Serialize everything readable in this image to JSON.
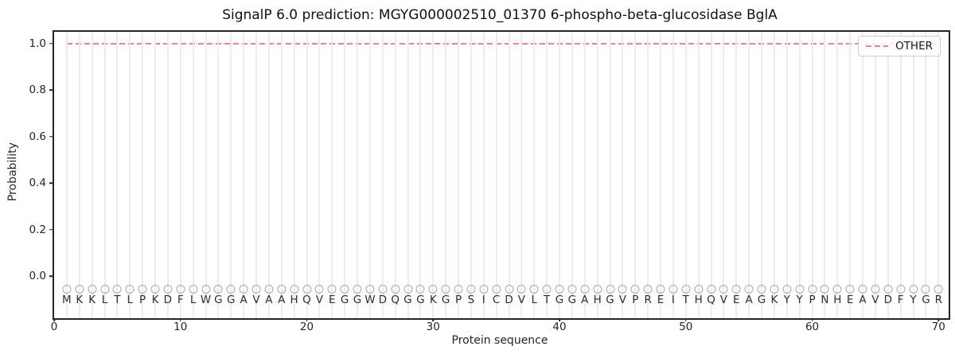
{
  "title": "SignalP 6.0 prediction: MGYG000002510_01370 6-phospho-beta-glucosidase BglA",
  "chart_data": {
    "type": "line",
    "title": "SignalP 6.0 prediction: MGYG000002510_01370 6-phospho-beta-glucosidase BglA",
    "xlabel": "Protein sequence",
    "ylabel": "Probability",
    "xlim": [
      0,
      70.8
    ],
    "ylim": [
      -0.18,
      1.05
    ],
    "x_ticks": [
      0,
      10,
      20,
      30,
      40,
      50,
      60,
      70
    ],
    "y_ticks": [
      "0.0",
      "0.2",
      "0.4",
      "0.6",
      "0.8",
      "1.0"
    ],
    "grid": "vertical gridline at every residue position, light gray",
    "legend": {
      "position": "upper right",
      "entries": [
        {
          "label": "OTHER",
          "color": "#f4817f",
          "style": "dashed"
        }
      ]
    },
    "series": [
      {
        "name": "OTHER",
        "style": "dashed",
        "color": "#f4817f",
        "x_start": 1,
        "x_end": 70,
        "y_value": 1.0,
        "note": "constant probability 1.0 across residues 1-70"
      }
    ],
    "sequence": "MKKLTLPKDFLWGGAVAAHQVEGGWDQGGKGPSICDVLTGGAHGVPREITHQVEAGKYYPNHEAVDFYGR",
    "sequence_length": 70,
    "marker_row": {
      "marker": "open-circle",
      "color": "#a8a8a8",
      "y_value": -0.055,
      "letter_y_value": -0.1
    },
    "colors": {
      "background": "#ffffff",
      "spine": "#262626",
      "gridline": "#ececec",
      "tick_text": "#262626",
      "sequence_text": "#2e2e2e",
      "other_line": "#f4817f"
    }
  }
}
